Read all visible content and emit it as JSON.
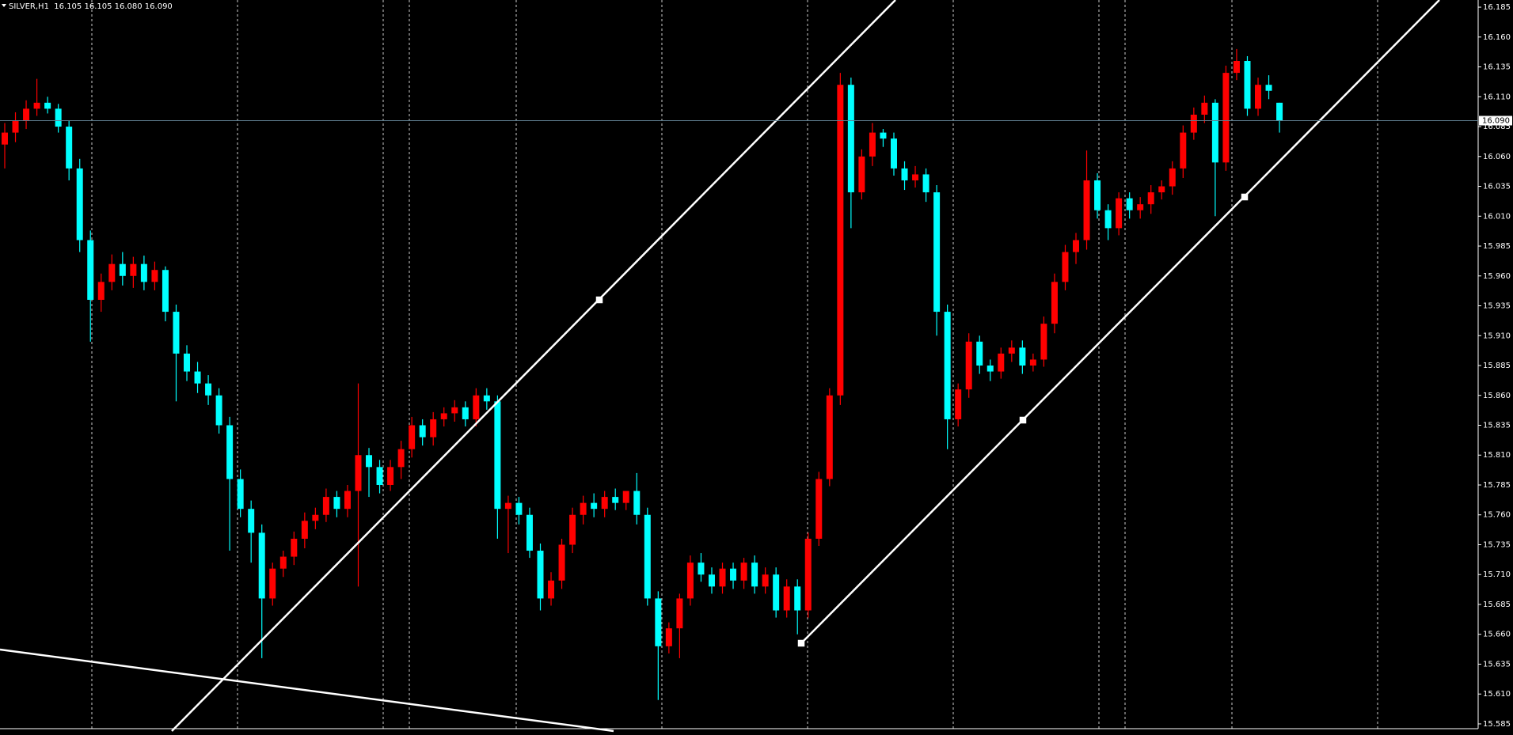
{
  "chart_data": {
    "type": "candlestick",
    "title": "SILVER,H1  16.105 16.105 16.080 16.090",
    "up_color": "#ff0000",
    "down_color": "#00ffff",
    "ylim": [
      15.581,
      16.191
    ],
    "yticks": [
      16.185,
      {
        "value": 16.16,
        "label": "16.160"
      },
      16.135,
      {
        "value": 16.11,
        "label": "16.110"
      },
      16.085,
      {
        "value": 16.06,
        "label": "16.060"
      },
      16.035,
      {
        "value": 16.01,
        "label": "16.010"
      },
      15.985,
      {
        "value": 15.96,
        "label": "15.960"
      },
      15.935,
      {
        "value": 15.91,
        "label": "15.910"
      },
      15.885,
      {
        "value": 15.86,
        "label": "15.860"
      },
      15.835,
      {
        "value": 15.81,
        "label": "15.810"
      },
      15.785,
      {
        "value": 15.76,
        "label": "15.760"
      },
      15.735,
      {
        "value": 15.71,
        "label": "15.710"
      },
      15.685,
      {
        "value": 15.66,
        "label": "15.660"
      },
      15.635,
      {
        "value": 15.61,
        "label": "15.610"
      },
      15.585
    ],
    "current_price": {
      "value": 16.09,
      "label": "16.090"
    },
    "open": [
      16.07,
      16.08,
      16.09,
      16.1,
      16.105,
      16.1,
      16.085,
      16.05,
      15.99,
      15.94,
      15.955,
      15.97,
      15.96,
      15.97,
      15.955,
      15.965,
      15.93,
      15.895,
      15.88,
      15.87,
      15.86,
      15.835,
      15.79,
      15.765,
      15.745,
      15.69,
      15.715,
      15.725,
      15.74,
      15.755,
      15.76,
      15.775,
      15.765,
      15.78,
      15.81,
      15.8,
      15.785,
      15.8,
      15.815,
      15.835,
      15.825,
      15.84,
      15.845,
      15.85,
      15.84,
      15.86,
      15.855,
      15.765,
      15.77,
      15.76,
      15.73,
      15.69,
      15.705,
      15.735,
      15.76,
      15.77,
      15.765,
      15.775,
      15.77,
      15.78,
      15.76,
      15.69,
      15.65,
      15.665,
      15.69,
      15.72,
      15.71,
      15.7,
      15.715,
      15.705,
      15.72,
      15.7,
      15.71,
      15.68,
      15.7,
      15.68,
      15.74,
      15.79,
      15.86,
      16.12,
      16.03,
      16.06,
      16.08,
      16.075,
      16.05,
      16.04,
      16.045,
      16.03,
      15.93,
      15.84,
      15.865,
      15.905,
      15.885,
      15.88,
      15.895,
      15.9,
      15.885,
      15.89,
      15.92,
      15.955,
      15.98,
      15.99,
      16.04,
      16.015,
      16.0,
      16.025,
      16.015,
      16.02,
      16.03,
      16.035,
      16.05,
      16.08,
      16.095,
      16.105,
      16.055,
      16.13,
      16.14,
      16.1,
      16.12,
      16.105
    ],
    "high": [
      16.088,
      16.097,
      16.107,
      16.125,
      16.11,
      16.104,
      16.09,
      16.058,
      15.998,
      15.962,
      15.978,
      15.98,
      15.976,
      15.977,
      15.972,
      15.968,
      15.936,
      15.902,
      15.888,
      15.877,
      15.866,
      15.842,
      15.798,
      15.772,
      15.752,
      15.72,
      15.73,
      15.746,
      15.762,
      15.766,
      15.782,
      15.78,
      15.785,
      15.87,
      15.816,
      15.806,
      15.806,
      15.822,
      15.842,
      15.84,
      15.846,
      15.85,
      15.856,
      15.855,
      15.866,
      15.866,
      15.86,
      15.776,
      15.775,
      15.766,
      15.736,
      15.712,
      15.74,
      15.766,
      15.776,
      15.778,
      15.78,
      15.782,
      15.776,
      15.795,
      15.766,
      15.696,
      15.67,
      15.694,
      15.726,
      15.728,
      15.716,
      15.72,
      15.72,
      15.724,
      15.726,
      15.716,
      15.716,
      15.706,
      15.706,
      15.745,
      15.796,
      15.866,
      16.13,
      16.126,
      16.066,
      16.088,
      16.083,
      16.08,
      16.056,
      16.052,
      16.05,
      16.036,
      15.936,
      15.87,
      15.912,
      15.91,
      15.89,
      15.9,
      15.906,
      15.906,
      15.895,
      15.926,
      15.962,
      15.986,
      15.996,
      16.065,
      16.046,
      16.02,
      16.03,
      16.03,
      16.026,
      16.036,
      16.04,
      16.056,
      16.086,
      16.101,
      16.111,
      16.108,
      16.136,
      16.15,
      16.144,
      16.126,
      16.128,
      16.105
    ],
    "low": [
      16.05,
      16.072,
      16.083,
      16.094,
      16.096,
      16.08,
      16.04,
      15.98,
      15.905,
      15.93,
      15.948,
      15.952,
      15.95,
      15.948,
      15.948,
      15.922,
      15.855,
      15.872,
      15.862,
      15.852,
      15.828,
      15.73,
      15.758,
      15.72,
      15.64,
      15.684,
      15.708,
      15.718,
      15.732,
      15.748,
      15.754,
      15.758,
      15.758,
      15.7,
      15.775,
      15.778,
      15.78,
      15.79,
      15.808,
      15.818,
      15.818,
      15.834,
      15.838,
      15.834,
      15.834,
      15.848,
      15.74,
      15.728,
      15.752,
      15.724,
      15.68,
      15.684,
      15.698,
      15.728,
      15.752,
      15.758,
      15.758,
      15.764,
      15.764,
      15.752,
      15.684,
      15.605,
      15.644,
      15.64,
      15.684,
      15.704,
      15.694,
      15.694,
      15.698,
      15.698,
      15.694,
      15.694,
      15.674,
      15.674,
      15.66,
      15.674,
      15.734,
      15.784,
      15.852,
      16.0,
      16.024,
      16.052,
      16.068,
      16.044,
      16.032,
      16.034,
      16.022,
      15.91,
      15.815,
      15.834,
      15.858,
      15.878,
      15.872,
      15.874,
      15.888,
      15.878,
      15.88,
      15.884,
      15.912,
      15.948,
      15.97,
      15.982,
      16.008,
      15.99,
      15.994,
      16.008,
      16.008,
      16.012,
      16.024,
      16.028,
      16.042,
      16.074,
      16.088,
      16.01,
      16.048,
      16.124,
      16.094,
      16.094,
      16.108,
      16.08
    ],
    "close": [
      16.08,
      16.09,
      16.1,
      16.105,
      16.1,
      16.085,
      16.05,
      15.99,
      15.94,
      15.955,
      15.97,
      15.96,
      15.97,
      15.955,
      15.965,
      15.93,
      15.895,
      15.88,
      15.87,
      15.86,
      15.835,
      15.79,
      15.765,
      15.745,
      15.69,
      15.715,
      15.725,
      15.74,
      15.755,
      15.76,
      15.775,
      15.765,
      15.78,
      15.81,
      15.8,
      15.785,
      15.8,
      15.815,
      15.835,
      15.825,
      15.84,
      15.845,
      15.85,
      15.84,
      15.86,
      15.855,
      15.765,
      15.77,
      15.76,
      15.73,
      15.69,
      15.705,
      15.735,
      15.76,
      15.77,
      15.765,
      15.775,
      15.77,
      15.78,
      15.76,
      15.69,
      15.65,
      15.665,
      15.69,
      15.72,
      15.71,
      15.7,
      15.715,
      15.705,
      15.72,
      15.7,
      15.71,
      15.68,
      15.7,
      15.68,
      15.74,
      15.79,
      15.86,
      16.12,
      16.03,
      16.06,
      16.08,
      16.075,
      16.05,
      16.04,
      16.045,
      16.03,
      15.93,
      15.84,
      15.865,
      15.905,
      15.885,
      15.88,
      15.895,
      15.9,
      15.885,
      15.89,
      15.92,
      15.955,
      15.98,
      15.99,
      16.04,
      16.015,
      16.0,
      16.025,
      16.015,
      16.02,
      16.03,
      16.035,
      16.05,
      16.08,
      16.095,
      16.105,
      16.055,
      16.13,
      16.14,
      16.1,
      16.12,
      16.115,
      16.09
    ]
  }
}
